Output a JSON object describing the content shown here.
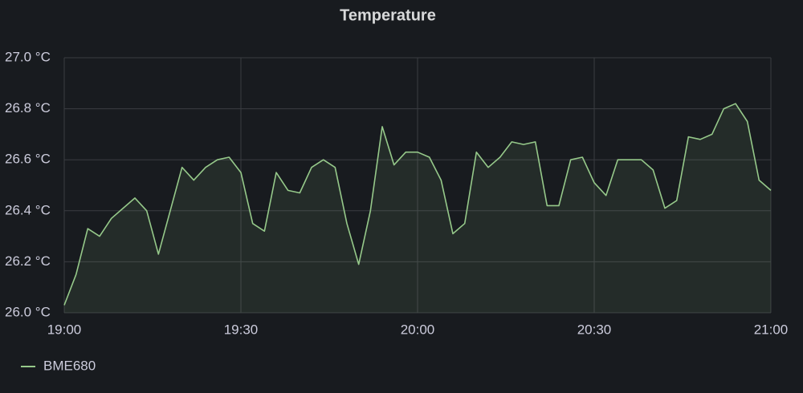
{
  "chart_data": {
    "type": "line",
    "title": "Temperature",
    "x": [
      "19:00",
      "19:02",
      "19:04",
      "19:06",
      "19:08",
      "19:10",
      "19:12",
      "19:14",
      "19:16",
      "19:18",
      "19:20",
      "19:22",
      "19:24",
      "19:26",
      "19:28",
      "19:30",
      "19:32",
      "19:34",
      "19:36",
      "19:38",
      "19:40",
      "19:42",
      "19:44",
      "19:46",
      "19:48",
      "19:50",
      "19:52",
      "19:54",
      "19:56",
      "19:58",
      "20:00",
      "20:02",
      "20:04",
      "20:06",
      "20:08",
      "20:10",
      "20:12",
      "20:14",
      "20:16",
      "20:18",
      "20:20",
      "20:22",
      "20:24",
      "20:26",
      "20:28",
      "20:30",
      "20:32",
      "20:34",
      "20:36",
      "20:38",
      "20:40",
      "20:42",
      "20:44",
      "20:46",
      "20:48",
      "20:50",
      "20:52",
      "20:54",
      "20:56",
      "20:58",
      "21:00"
    ],
    "series": [
      {
        "name": "BME680",
        "color": "#96c98a",
        "values": [
          26.03,
          26.15,
          26.33,
          26.3,
          26.37,
          26.41,
          26.45,
          26.4,
          26.23,
          26.4,
          26.57,
          26.52,
          26.57,
          26.6,
          26.61,
          26.55,
          26.35,
          26.32,
          26.55,
          26.48,
          26.47,
          26.57,
          26.6,
          26.57,
          26.35,
          26.19,
          26.4,
          26.73,
          26.58,
          26.63,
          26.63,
          26.61,
          26.52,
          26.31,
          26.35,
          26.63,
          26.57,
          26.61,
          26.67,
          26.66,
          26.67,
          26.42,
          26.42,
          26.6,
          26.61,
          26.51,
          26.46,
          26.6,
          26.6,
          26.6,
          26.56,
          26.41,
          26.44,
          26.69,
          26.68,
          26.7,
          26.8,
          26.82,
          26.75,
          26.52,
          26.48
        ]
      }
    ],
    "xlim": [
      "19:00",
      "21:00"
    ],
    "xticks": [
      "19:00",
      "19:30",
      "20:00",
      "20:30",
      "21:00"
    ],
    "ylim": [
      26,
      27
    ],
    "yticks": [
      {
        "value": 26,
        "label": "26.0 °C"
      },
      {
        "value": 26.2,
        "label": "26.2 °C"
      },
      {
        "value": 26.4,
        "label": "26.4 °C"
      },
      {
        "value": 26.6,
        "label": "26.6 °C"
      },
      {
        "value": 26.8,
        "label": "26.8 °C"
      },
      {
        "value": 27,
        "label": "27.0 °C"
      }
    ],
    "grid": true,
    "legend": "bottom"
  }
}
